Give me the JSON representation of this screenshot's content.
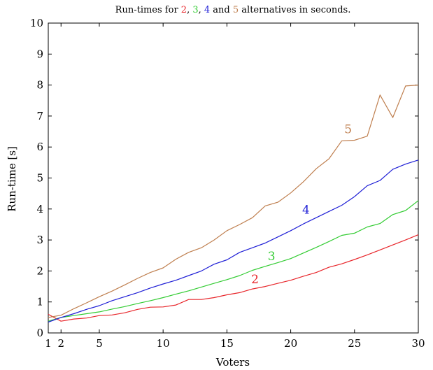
{
  "chart_data": {
    "type": "line",
    "title": {
      "parts": [
        {
          "text": "Run-times for ",
          "color": "#000000"
        },
        {
          "text": "2",
          "color": "#e8262b"
        },
        {
          "text": ", ",
          "color": "#000000"
        },
        {
          "text": "3",
          "color": "#33cc33"
        },
        {
          "text": ", ",
          "color": "#000000"
        },
        {
          "text": "4",
          "color": "#1f1fd6"
        },
        {
          "text": " and ",
          "color": "#000000"
        },
        {
          "text": "5",
          "color": "#bf7f4f"
        },
        {
          "text": " alternatives in seconds.",
          "color": "#000000"
        }
      ]
    },
    "xlabel": "Voters",
    "ylabel": "Run-time [s]",
    "xlim": [
      1,
      30
    ],
    "ylim": [
      0,
      10
    ],
    "xticks": [
      1,
      2,
      5,
      10,
      15,
      20,
      25,
      30
    ],
    "yticks": [
      0,
      1,
      2,
      3,
      4,
      5,
      6,
      7,
      8,
      9,
      10
    ],
    "grid": false,
    "x": [
      1,
      2,
      3,
      4,
      5,
      6,
      7,
      8,
      9,
      10,
      11,
      12,
      13,
      14,
      15,
      16,
      17,
      18,
      19,
      20,
      21,
      22,
      23,
      24,
      25,
      26,
      27,
      28,
      29,
      30
    ],
    "series": [
      {
        "name": "2",
        "color": "#e8262b",
        "label_at": [
          17.2,
          1.6
        ],
        "values": [
          0.6,
          0.38,
          0.45,
          0.48,
          0.56,
          0.58,
          0.65,
          0.76,
          0.83,
          0.84,
          0.9,
          1.08,
          1.08,
          1.14,
          1.23,
          1.3,
          1.42,
          1.5,
          1.6,
          1.7,
          1.83,
          1.95,
          2.12,
          2.23,
          2.37,
          2.52,
          2.68,
          2.84,
          3.0,
          3.17
        ]
      },
      {
        "name": "3",
        "color": "#33cc33",
        "label_at": [
          18.5,
          2.35
        ],
        "values": [
          0.38,
          0.5,
          0.56,
          0.62,
          0.68,
          0.77,
          0.85,
          0.95,
          1.04,
          1.14,
          1.25,
          1.36,
          1.48,
          1.6,
          1.72,
          1.85,
          2.02,
          2.15,
          2.27,
          2.4,
          2.58,
          2.76,
          2.95,
          3.15,
          3.22,
          3.42,
          3.53,
          3.82,
          3.95,
          4.27
        ]
      },
      {
        "name": "4",
        "color": "#1f1fd6",
        "label_at": [
          21.2,
          3.85
        ],
        "values": [
          0.35,
          0.5,
          0.62,
          0.76,
          0.88,
          1.04,
          1.17,
          1.3,
          1.45,
          1.58,
          1.7,
          1.85,
          2.0,
          2.22,
          2.36,
          2.6,
          2.75,
          2.9,
          3.1,
          3.3,
          3.52,
          3.72,
          3.92,
          4.12,
          4.4,
          4.75,
          4.92,
          5.28,
          5.45,
          5.58
        ]
      },
      {
        "name": "5",
        "color": "#bf7f4f",
        "label_at": [
          24.5,
          6.45
        ],
        "values": [
          0.5,
          0.57,
          0.78,
          0.97,
          1.17,
          1.35,
          1.55,
          1.76,
          1.95,
          2.1,
          2.38,
          2.6,
          2.75,
          3.0,
          3.3,
          3.5,
          3.72,
          4.1,
          4.22,
          4.52,
          4.88,
          5.3,
          5.62,
          6.2,
          6.22,
          6.35,
          7.68,
          6.95,
          7.97,
          8.0
        ]
      }
    ]
  }
}
